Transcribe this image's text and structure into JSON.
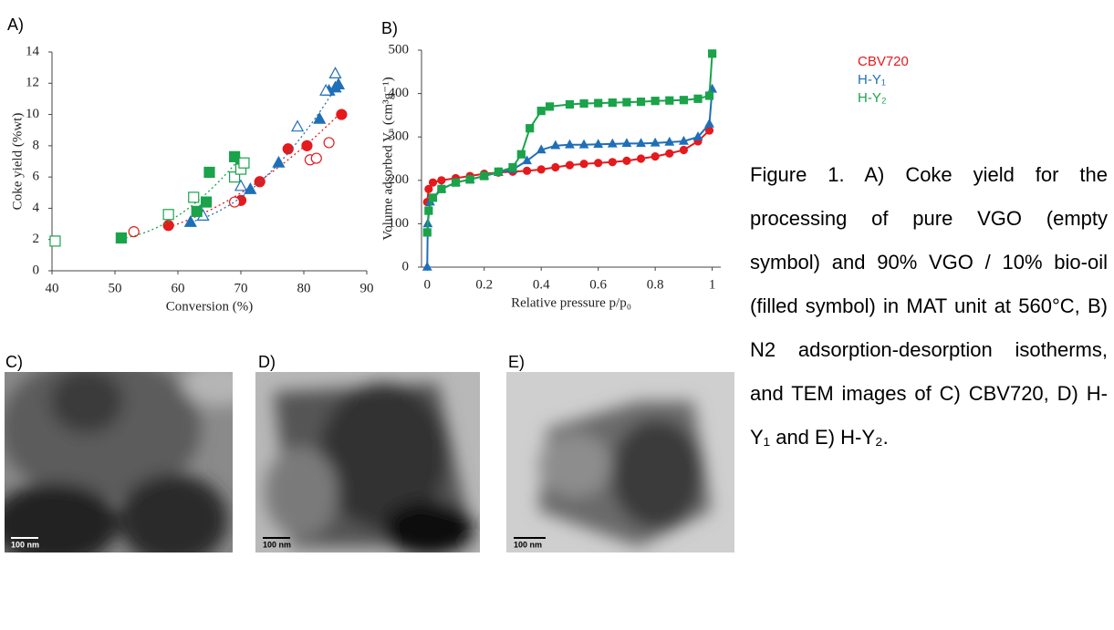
{
  "panel_labels": [
    "A)",
    "B)",
    "C)",
    "D)",
    "E)"
  ],
  "scale_bars": [
    "100 nm",
    "100 nm",
    "100 nm"
  ],
  "caption": "Figure 1. A) Coke yield for the processing of pure VGO (empty symbol) and 90% VGO / 10% bio-oil (filled symbol) in MAT unit at 560°C, B) N2 adsorption-desorption isotherms, and TEM images of C) CBV720, D) H-Y₁ and E) H-Y₂.",
  "chart_data": [
    {
      "type": "scatter",
      "x_label": "Conversion (%)",
      "y_label": "Coke yield (%wt)",
      "xlim": [
        40,
        90
      ],
      "xticks": [
        40,
        50,
        60,
        70,
        80,
        90
      ],
      "ylim": [
        0,
        14
      ],
      "yticks": [
        0,
        2,
        4,
        6,
        8,
        10,
        12,
        14
      ],
      "series": [
        {
          "color": "#e41a1c",
          "marker": "circle",
          "filled": true,
          "trendline": true,
          "x": [
            58.5,
            70,
            73,
            77.5,
            80.5,
            86
          ],
          "values": [
            2.9,
            4.5,
            5.7,
            7.8,
            8.0,
            10.0
          ]
        },
        {
          "color": "#e41a1c",
          "marker": "circle",
          "filled": false,
          "trendline": false,
          "x": [
            53,
            69,
            81,
            82,
            84
          ],
          "values": [
            2.5,
            4.4,
            7.1,
            7.2,
            8.2
          ]
        },
        {
          "color": "#1f6fb8",
          "marker": "triangle",
          "filled": true,
          "trendline": true,
          "x": [
            62,
            71.5,
            76,
            82.5,
            84,
            85,
            85.5
          ],
          "values": [
            3.1,
            5.2,
            6.9,
            9.7,
            11.5,
            11.7,
            11.9
          ]
        },
        {
          "color": "#1f6fb8",
          "marker": "triangle",
          "filled": false,
          "trendline": false,
          "x": [
            63.5,
            64,
            70,
            79,
            83.5,
            85
          ],
          "values": [
            3.8,
            3.5,
            5.4,
            9.2,
            11.5,
            12.6
          ]
        },
        {
          "color": "#1aa34a",
          "marker": "square",
          "filled": true,
          "trendline": true,
          "x": [
            51,
            63,
            64.5,
            65,
            69,
            70
          ],
          "values": [
            2.1,
            3.8,
            4.4,
            6.3,
            7.3,
            6.7
          ]
        },
        {
          "color": "#1aa34a",
          "marker": "square",
          "filled": false,
          "trendline": false,
          "x": [
            40.5,
            58.5,
            62.5,
            69,
            70,
            70.5
          ],
          "values": [
            1.9,
            3.6,
            4.7,
            6.0,
            6.5,
            6.9
          ]
        }
      ]
    },
    {
      "type": "line",
      "x_label": "Relative pressure p/p₀",
      "y_label": "Volume adsorbed Vₐ (cm³g⁻¹)",
      "xlim": [
        -0.02,
        1.03
      ],
      "xticks": [
        0,
        0.2,
        0.4,
        0.6,
        0.8,
        1
      ],
      "ylim": [
        0,
        500
      ],
      "yticks": [
        0,
        100,
        200,
        300,
        400,
        500
      ],
      "series": [
        {
          "name": "CBV720",
          "color": "#e41a1c",
          "marker": "circle",
          "x": [
            0,
            0.005,
            0.02,
            0.05,
            0.1,
            0.15,
            0.2,
            0.25,
            0.3,
            0.35,
            0.4,
            0.45,
            0.5,
            0.55,
            0.6,
            0.65,
            0.7,
            0.75,
            0.8,
            0.85,
            0.9,
            0.95,
            0.99
          ],
          "values": [
            150,
            180,
            195,
            200,
            205,
            210,
            215,
            218,
            220,
            222,
            225,
            230,
            235,
            238,
            240,
            242,
            245,
            250,
            255,
            262,
            270,
            290,
            315
          ]
        },
        {
          "name": "H-Y₁",
          "color": "#1f6fb8",
          "marker": "triangle",
          "x": [
            0,
            0.002,
            0.01,
            0.05,
            0.1,
            0.15,
            0.2,
            0.25,
            0.3,
            0.35,
            0.4,
            0.45,
            0.5,
            0.55,
            0.6,
            0.65,
            0.7,
            0.75,
            0.8,
            0.85,
            0.9,
            0.95,
            0.99,
            1.0
          ],
          "values": [
            0,
            100,
            150,
            180,
            195,
            202,
            210,
            218,
            225,
            245,
            270,
            280,
            282,
            282,
            283,
            284,
            285,
            285,
            286,
            288,
            290,
            300,
            330,
            410
          ]
        },
        {
          "name": "H-Y₂",
          "color": "#1aa34a",
          "marker": "square",
          "x": [
            0,
            0.005,
            0.02,
            0.05,
            0.1,
            0.15,
            0.2,
            0.25,
            0.3,
            0.33,
            0.36,
            0.4,
            0.43,
            0.5,
            0.55,
            0.6,
            0.65,
            0.7,
            0.75,
            0.8,
            0.85,
            0.9,
            0.95,
            0.99,
            1.0
          ],
          "values": [
            80,
            130,
            160,
            180,
            195,
            202,
            210,
            220,
            230,
            260,
            320,
            360,
            370,
            375,
            377,
            378,
            379,
            380,
            381,
            383,
            384,
            385,
            388,
            395,
            492
          ]
        }
      ]
    }
  ]
}
